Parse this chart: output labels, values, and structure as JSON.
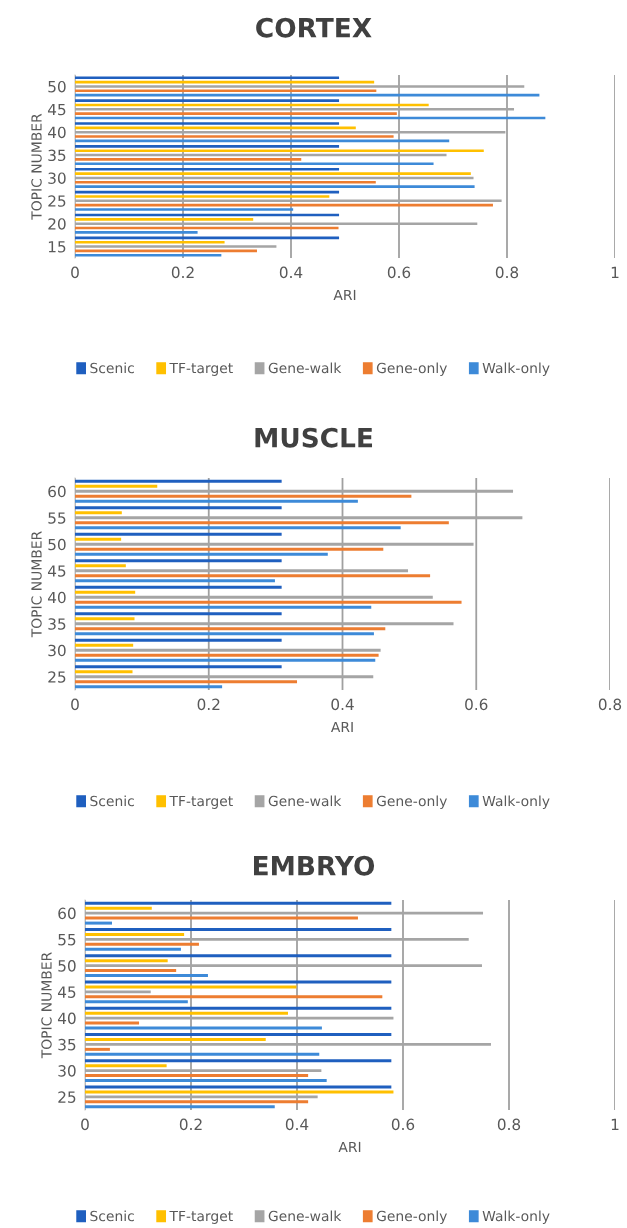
{
  "chart_data": [
    {
      "type": "bar",
      "orientation": "horizontal",
      "title": "CORTEX",
      "xlabel": "ARI",
      "ylabel": "TOPIC NUMBER",
      "categories": [
        "50",
        "45",
        "40",
        "35",
        "30",
        "25",
        "20",
        "15"
      ],
      "xlim": [
        0,
        1
      ],
      "xticks": [
        0,
        0.2,
        0.4,
        0.6,
        0.8,
        1
      ],
      "grid": "x",
      "legend": "bottom",
      "series": [
        {
          "name": "Scenic",
          "color": "#1f5fbf",
          "values": [
            0.489,
            0.489,
            0.489,
            0.489,
            0.489,
            0.489,
            0.489,
            0.489
          ]
        },
        {
          "name": "TF-target",
          "color": "#ffc000",
          "values": [
            0.554,
            0.655,
            0.52,
            0.757,
            0.733,
            0.471,
            0.33,
            0.277
          ]
        },
        {
          "name": "Gene-walk",
          "color": "#a5a5a5",
          "values": [
            0.832,
            0.813,
            0.797,
            0.688,
            0.738,
            0.79,
            0.745,
            0.373
          ]
        },
        {
          "name": "Gene-only",
          "color": "#ed7d31",
          "values": [
            0.558,
            0.596,
            0.59,
            0.419,
            0.557,
            0.774,
            0.488,
            0.337
          ]
        },
        {
          "name": "Walk-only",
          "color": "#3d8ad8",
          "values": [
            0.86,
            0.871,
            0.693,
            0.664,
            0.74,
            0.404,
            0.227,
            0.271
          ]
        }
      ]
    },
    {
      "type": "bar",
      "orientation": "horizontal",
      "title": "MUSCLE",
      "xlabel": "ARI",
      "ylabel": "TOPIC NUMBER",
      "categories": [
        "60",
        "55",
        "50",
        "45",
        "40",
        "35",
        "30",
        "25"
      ],
      "xlim": [
        0,
        0.8
      ],
      "xticks": [
        0,
        0.2,
        0.4,
        0.6,
        0.8
      ],
      "grid": "x",
      "legend": "bottom",
      "series": [
        {
          "name": "Scenic",
          "color": "#1f5fbf",
          "values": [
            0.309,
            0.309,
            0.309,
            0.309,
            0.309,
            0.309,
            0.309,
            0.309
          ]
        },
        {
          "name": "TF-target",
          "color": "#ffc000",
          "values": [
            0.123,
            0.07,
            0.069,
            0.076,
            0.09,
            0.089,
            0.087,
            0.086
          ]
        },
        {
          "name": "Gene-walk",
          "color": "#a5a5a5",
          "values": [
            0.655,
            0.669,
            0.596,
            0.498,
            0.535,
            0.566,
            0.457,
            0.446
          ]
        },
        {
          "name": "Gene-only",
          "color": "#ed7d31",
          "values": [
            0.503,
            0.559,
            0.461,
            0.531,
            0.578,
            0.464,
            0.454,
            0.332
          ]
        },
        {
          "name": "Walk-only",
          "color": "#3d8ad8",
          "values": [
            0.423,
            0.487,
            0.378,
            0.299,
            0.443,
            0.447,
            0.449,
            0.22
          ]
        }
      ]
    },
    {
      "type": "bar",
      "orientation": "horizontal",
      "title": "EMBRYO",
      "xlabel": "ARI",
      "ylabel": "TOPIC NUMBER",
      "categories": [
        "60",
        "55",
        "50",
        "45",
        "40",
        "35",
        "30",
        "25"
      ],
      "xlim": [
        0,
        1
      ],
      "xticks": [
        0,
        0.2,
        0.4,
        0.6,
        0.8,
        1
      ],
      "grid": "x",
      "legend": "bottom",
      "series": [
        {
          "name": "Scenic",
          "color": "#1f5fbf",
          "values": [
            0.578,
            0.578,
            0.578,
            0.578,
            0.578,
            0.578,
            0.578,
            0.578
          ]
        },
        {
          "name": "TF-target",
          "color": "#ffc000",
          "values": [
            0.126,
            0.187,
            0.156,
            0.399,
            0.383,
            0.341,
            0.154,
            0.582
          ]
        },
        {
          "name": "Gene-walk",
          "color": "#a5a5a5",
          "values": [
            0.751,
            0.724,
            0.749,
            0.124,
            0.582,
            0.766,
            0.446,
            0.439
          ]
        },
        {
          "name": "Gene-only",
          "color": "#ed7d31",
          "values": [
            0.515,
            0.215,
            0.172,
            0.561,
            0.102,
            0.047,
            0.421,
            0.421
          ]
        },
        {
          "name": "Walk-only",
          "color": "#3d8ad8",
          "values": [
            0.051,
            0.181,
            0.232,
            0.194,
            0.447,
            0.442,
            0.456,
            0.358
          ]
        }
      ]
    }
  ]
}
